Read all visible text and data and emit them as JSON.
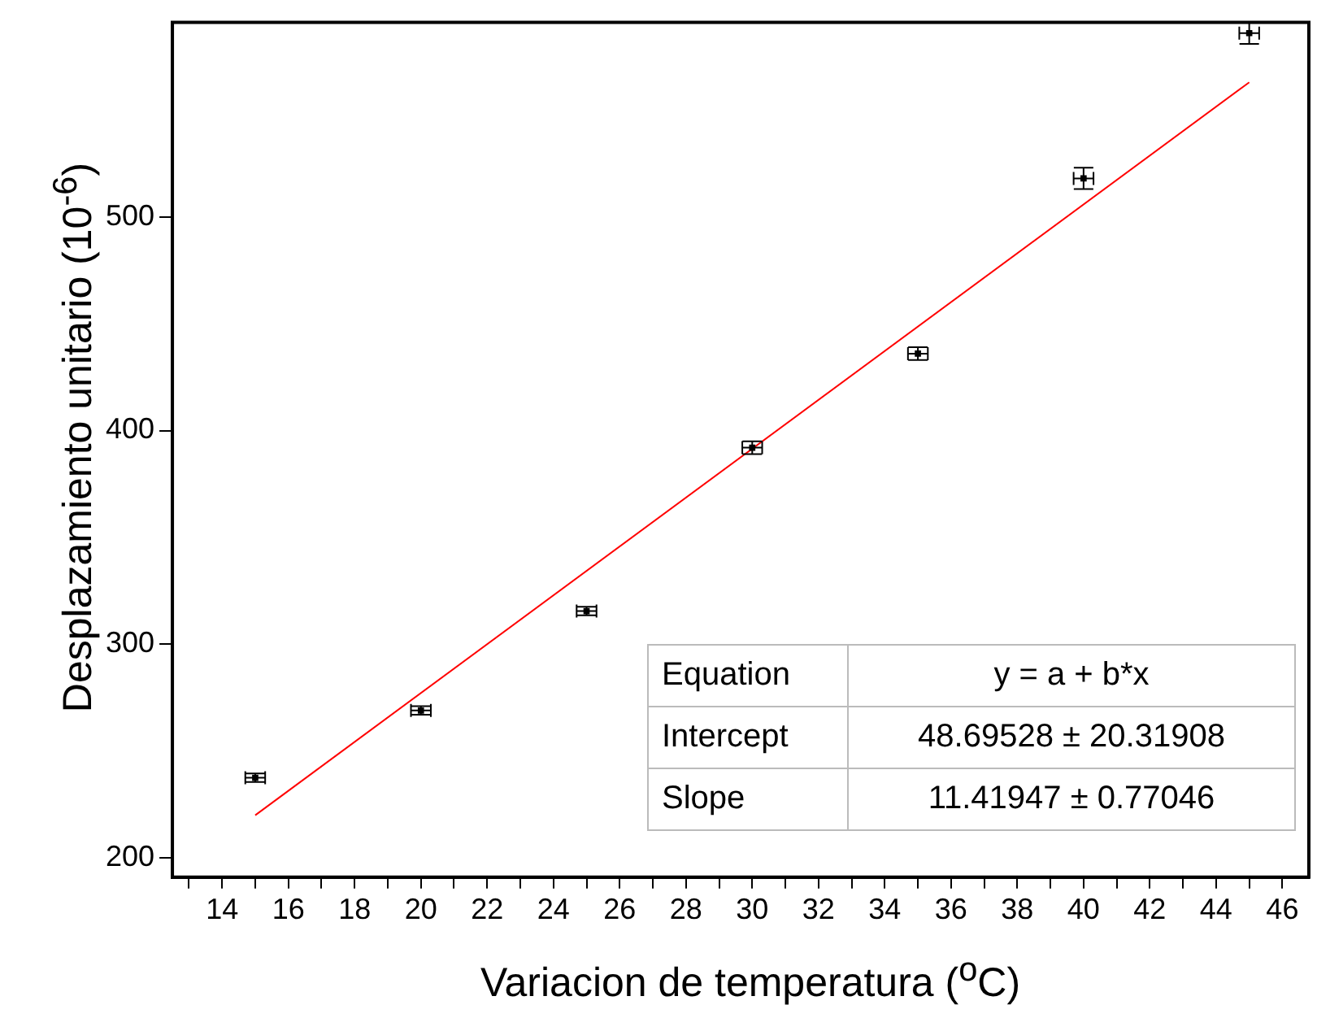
{
  "chart_data": {
    "type": "scatter",
    "xlabel": "Variacion de temperatura ($^{o}$C)",
    "ylabel": "Desplazamiento unitario (10$^{-6}$)",
    "x": [
      15,
      20,
      25,
      30,
      35,
      40,
      45
    ],
    "series": [
      {
        "color": "#000000",
        "values": [
          237.5,
          269,
          315.5,
          392,
          436,
          518,
          586
        ],
        "errors": [
          2,
          2,
          2,
          3,
          3,
          5,
          5
        ],
        "xerrors": [
          0.3,
          0.3,
          0.3,
          0.3,
          0.3,
          0.3,
          0.3
        ]
      },
      {
        "type": "line",
        "color": "#ff0000",
        "x": [
          15,
          45
        ],
        "values": [
          220,
          563
        ],
        "marker": "none"
      }
    ],
    "xlim": [
      12.5,
      46.8
    ],
    "ylim": [
      191,
      591
    ],
    "xticks": [
      {
        "value": 13,
        "label": null
      },
      14,
      {
        "value": 15,
        "label": null
      },
      16,
      {
        "value": 17,
        "label": null
      },
      18,
      {
        "value": 19,
        "label": null
      },
      20,
      {
        "value": 21,
        "label": null
      },
      22,
      {
        "value": 23,
        "label": null
      },
      24,
      {
        "value": 25,
        "label": null
      },
      26,
      {
        "value": 27,
        "label": null
      },
      28,
      {
        "value": 29,
        "label": null
      },
      30,
      {
        "value": 31,
        "label": null
      },
      32,
      {
        "value": 33,
        "label": null
      },
      34,
      {
        "value": 35,
        "label": null
      },
      36,
      {
        "value": 37,
        "label": null
      },
      38,
      {
        "value": 39,
        "label": null
      },
      40,
      {
        "value": 41,
        "label": null
      },
      42,
      {
        "value": 43,
        "label": null
      },
      44,
      {
        "value": 45,
        "label": null
      },
      46
    ],
    "yticks": [
      200,
      300,
      400,
      500
    ],
    "grid": false,
    "legend": false,
    "marker": "square",
    "annotations": [
      "Equation",
      "y = a + b*x",
      "Intercept",
      "48.69528 ± 20.31908",
      "Slope",
      "11.41947 ± 0.77046"
    ]
  }
}
